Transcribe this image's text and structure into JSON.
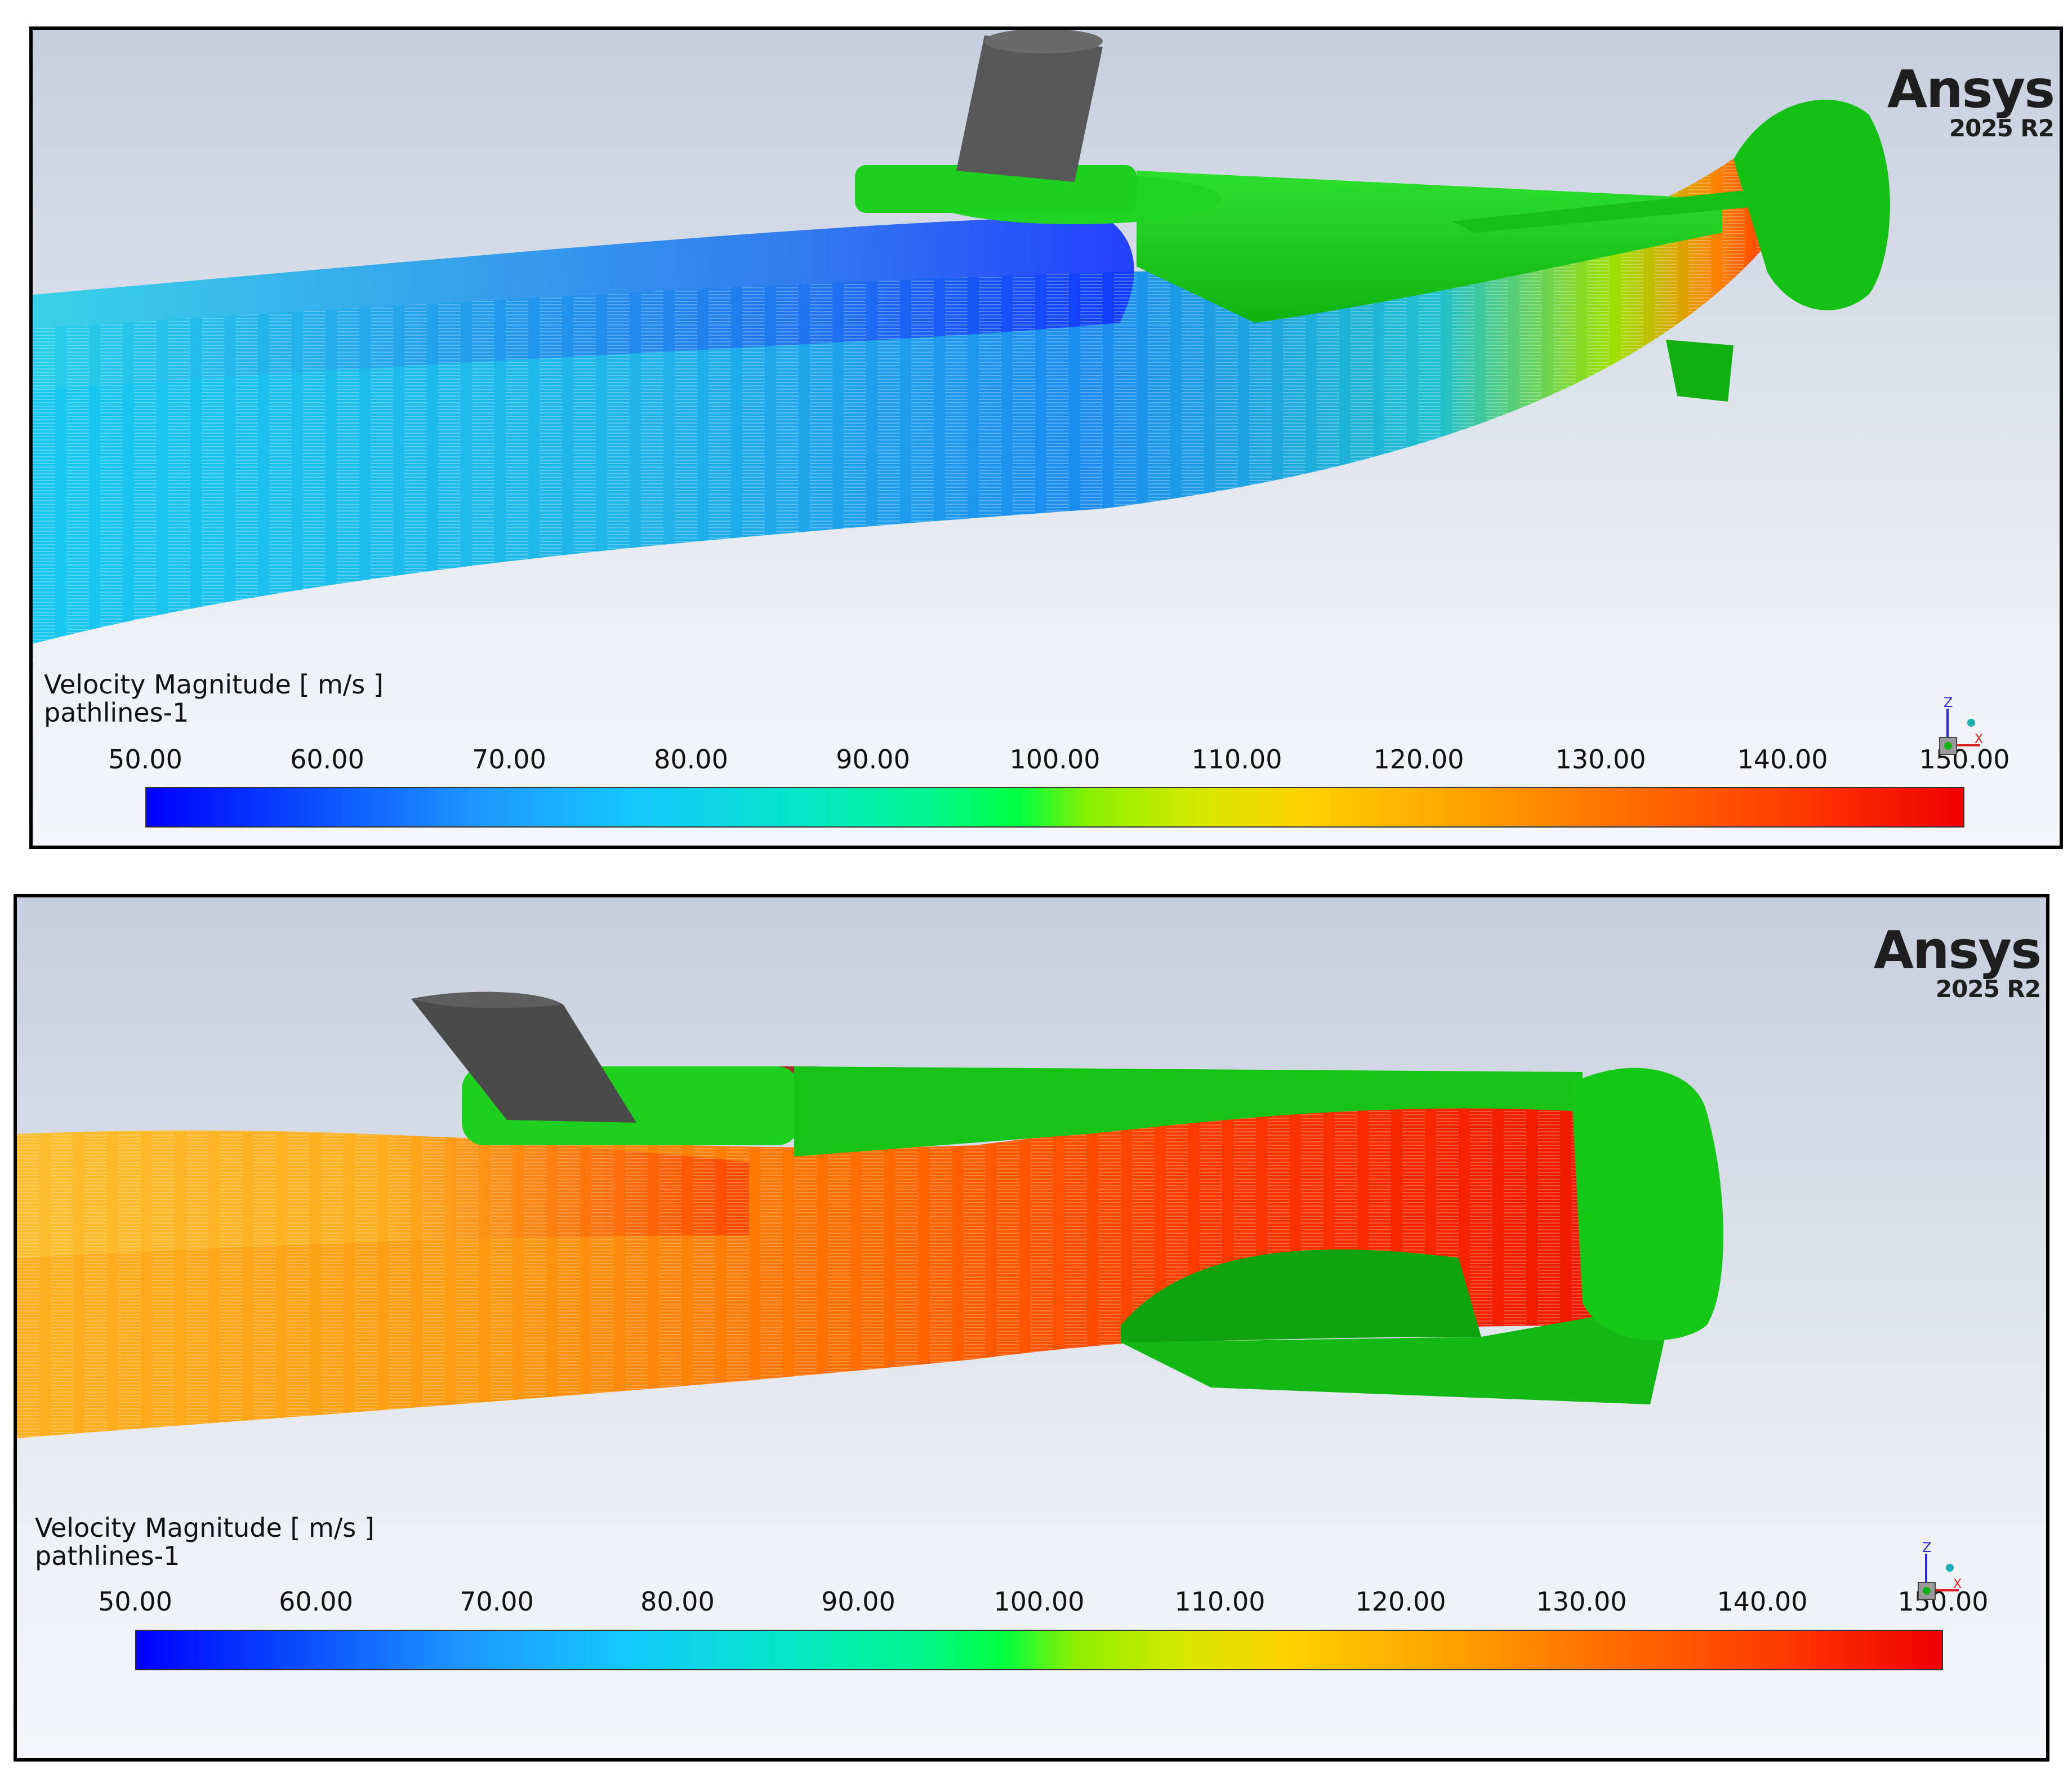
{
  "panels": [
    {
      "logo": {
        "name": "Ansys",
        "version": "2025 R2"
      },
      "legend": {
        "title": "Velocity Magnitude [ m/s ]",
        "subtitle": "pathlines-1"
      },
      "colorbar": {
        "labels": [
          "50.00",
          "60.00",
          "70.00",
          "80.00",
          "90.00",
          "100.00",
          "110.00",
          "120.00",
          "130.00",
          "140.00",
          "150.00"
        ],
        "min": 50,
        "max": 150,
        "unit": "m/s"
      },
      "axes_triad": {
        "z_label": "Z",
        "x_label": "X"
      }
    },
    {
      "logo": {
        "name": "Ansys",
        "version": "2025 R2"
      },
      "legend": {
        "title": "Velocity Magnitude [ m/s ]",
        "subtitle": "pathlines-1"
      },
      "colorbar": {
        "labels": [
          "50.00",
          "60.00",
          "70.00",
          "80.00",
          "90.00",
          "100.00",
          "110.00",
          "120.00",
          "130.00",
          "140.00",
          "150.00"
        ],
        "min": 50,
        "max": 150,
        "unit": "m/s"
      },
      "axes_triad": {
        "z_label": "Z",
        "x_label": "X"
      }
    }
  ],
  "colors": {
    "geometry_green": "#12c812",
    "geometry_dark": "#4a4a4a",
    "colormap_low": "#0000ff",
    "colormap_high": "#f00000"
  }
}
